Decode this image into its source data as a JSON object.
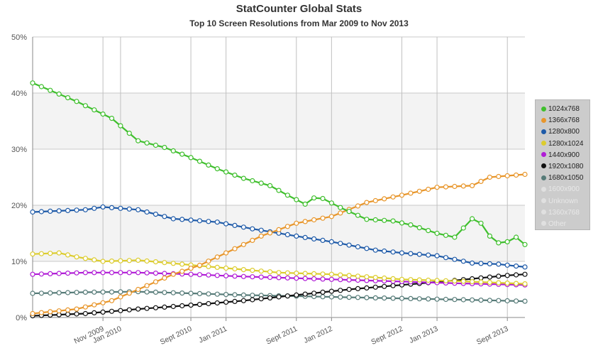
{
  "header": {
    "title": "StatCounter Global Stats",
    "subtitle": "Top 10 Screen Resolutions from Mar 2009 to Nov 2013"
  },
  "chart_data": {
    "type": "line",
    "title": "StatCounter Global Stats",
    "subtitle": "Top 10 Screen Resolutions from Mar 2009 to Nov 2013",
    "xlabel": "",
    "ylabel": "",
    "ylim": [
      0,
      50
    ],
    "y_ticks": [
      "0%",
      "10%",
      "20%",
      "30%",
      "40%",
      "50%"
    ],
    "x_start": "2009-03",
    "x_end": "2013-11",
    "x_ticks": [
      {
        "label": "Nov 2009",
        "month": "2009-11"
      },
      {
        "label": "Jan 2010",
        "month": "2010-01"
      },
      {
        "label": "Sept 2010",
        "month": "2010-09"
      },
      {
        "label": "Jan 2011",
        "month": "2011-01"
      },
      {
        "label": "Sept 2011",
        "month": "2011-09"
      },
      {
        "label": "Jan 2012",
        "month": "2012-01"
      },
      {
        "label": "Sept 2012",
        "month": "2012-09"
      },
      {
        "label": "Jan 2013",
        "month": "2013-01"
      },
      {
        "label": "Sept 2013",
        "month": "2013-09"
      }
    ],
    "grid": true,
    "legend_position": "right",
    "series": [
      {
        "name": "1024x768",
        "color": "#3fbf2d",
        "visible": true,
        "points": [
          [
            "2009-03",
            41.8
          ],
          [
            "2009-08",
            38.5
          ],
          [
            "2009-12",
            35.5
          ],
          [
            "2010-03",
            31.5
          ],
          [
            "2010-06",
            30.3
          ],
          [
            "2010-09",
            28.5
          ],
          [
            "2010-12",
            26.5
          ],
          [
            "2011-03",
            24.8
          ],
          [
            "2011-06",
            23.5
          ],
          [
            "2011-08",
            21.8
          ],
          [
            "2011-10",
            20.2
          ],
          [
            "2011-11",
            21.3
          ],
          [
            "2011-12",
            21.2
          ],
          [
            "2012-02",
            19.6
          ],
          [
            "2012-05",
            17.5
          ],
          [
            "2012-08",
            17.2
          ],
          [
            "2012-10",
            16.5
          ],
          [
            "2013-01",
            15.0
          ],
          [
            "2013-03",
            14.3
          ],
          [
            "2013-05",
            17.6
          ],
          [
            "2013-06",
            16.8
          ],
          [
            "2013-07",
            14.5
          ],
          [
            "2013-08",
            13.3
          ],
          [
            "2013-09",
            13.5
          ],
          [
            "2013-10",
            14.3
          ],
          [
            "2013-11",
            13.0
          ]
        ]
      },
      {
        "name": "1366x768",
        "color": "#e8962b",
        "visible": true,
        "points": [
          [
            "2009-03",
            0.7
          ],
          [
            "2009-08",
            1.5
          ],
          [
            "2009-12",
            3.0
          ],
          [
            "2010-03",
            5.0
          ],
          [
            "2010-07",
            7.7
          ],
          [
            "2010-10",
            9.3
          ],
          [
            "2011-01",
            11.5
          ],
          [
            "2011-05",
            14.5
          ],
          [
            "2011-09",
            16.8
          ],
          [
            "2012-01",
            18.0
          ],
          [
            "2012-05",
            20.5
          ],
          [
            "2012-09",
            21.8
          ],
          [
            "2013-01",
            23.2
          ],
          [
            "2013-05",
            23.5
          ],
          [
            "2013-07",
            25.0
          ],
          [
            "2013-11",
            25.5
          ]
        ]
      },
      {
        "name": "1280x800",
        "color": "#1e5aa8",
        "visible": true,
        "points": [
          [
            "2009-03",
            18.8
          ],
          [
            "2009-09",
            19.2
          ],
          [
            "2009-11",
            19.7
          ],
          [
            "2010-03",
            19.2
          ],
          [
            "2010-07",
            17.6
          ],
          [
            "2010-12",
            17.0
          ],
          [
            "2011-04",
            15.8
          ],
          [
            "2011-09",
            14.5
          ],
          [
            "2012-01",
            13.5
          ],
          [
            "2012-06",
            12.0
          ],
          [
            "2012-09",
            11.5
          ],
          [
            "2013-01",
            11.0
          ],
          [
            "2013-05",
            9.7
          ],
          [
            "2013-08",
            9.5
          ],
          [
            "2013-11",
            9.0
          ]
        ]
      },
      {
        "name": "1280x1024",
        "color": "#dccc2e",
        "visible": true,
        "points": [
          [
            "2009-03",
            11.3
          ],
          [
            "2009-06",
            11.5
          ],
          [
            "2009-08",
            10.8
          ],
          [
            "2009-11",
            10.0
          ],
          [
            "2010-03",
            10.2
          ],
          [
            "2010-08",
            9.5
          ],
          [
            "2011-01",
            8.8
          ],
          [
            "2011-07",
            8.0
          ],
          [
            "2012-01",
            7.7
          ],
          [
            "2012-09",
            6.8
          ],
          [
            "2013-03",
            6.5
          ],
          [
            "2013-11",
            6.0
          ]
        ]
      },
      {
        "name": "1440x900",
        "color": "#b01cd6",
        "visible": true,
        "points": [
          [
            "2009-03",
            7.7
          ],
          [
            "2009-09",
            8.0
          ],
          [
            "2010-03",
            8.0
          ],
          [
            "2010-09",
            7.7
          ],
          [
            "2011-03",
            7.3
          ],
          [
            "2011-09",
            7.0
          ],
          [
            "2012-03",
            6.7
          ],
          [
            "2012-09",
            6.4
          ],
          [
            "2013-03",
            6.1
          ],
          [
            "2013-11",
            5.8
          ]
        ]
      },
      {
        "name": "1920x1080",
        "color": "#111111",
        "visible": true,
        "points": [
          [
            "2009-03",
            0.3
          ],
          [
            "2009-09",
            0.7
          ],
          [
            "2010-03",
            1.5
          ],
          [
            "2010-09",
            2.2
          ],
          [
            "2011-03",
            3.0
          ],
          [
            "2011-09",
            4.0
          ],
          [
            "2012-03",
            5.0
          ],
          [
            "2012-09",
            5.8
          ],
          [
            "2013-03",
            6.6
          ],
          [
            "2013-09",
            7.5
          ],
          [
            "2013-11",
            7.7
          ]
        ]
      },
      {
        "name": "1680x1050",
        "color": "#567b78",
        "visible": true,
        "points": [
          [
            "2009-03",
            4.3
          ],
          [
            "2009-09",
            4.5
          ],
          [
            "2010-03",
            4.6
          ],
          [
            "2010-09",
            4.3
          ],
          [
            "2011-03",
            4.0
          ],
          [
            "2011-09",
            3.8
          ],
          [
            "2012-03",
            3.6
          ],
          [
            "2012-09",
            3.4
          ],
          [
            "2013-03",
            3.2
          ],
          [
            "2013-11",
            2.9
          ]
        ]
      },
      {
        "name": "1600x900",
        "color": "#e0e0e0",
        "visible": false,
        "points": []
      },
      {
        "name": "Unknown",
        "color": "#e0e0e0",
        "visible": false,
        "points": []
      },
      {
        "name": "1360x768",
        "color": "#e0e0e0",
        "visible": false,
        "points": []
      },
      {
        "name": "Other",
        "color": "#e0e0e0",
        "visible": false,
        "points": []
      }
    ]
  }
}
